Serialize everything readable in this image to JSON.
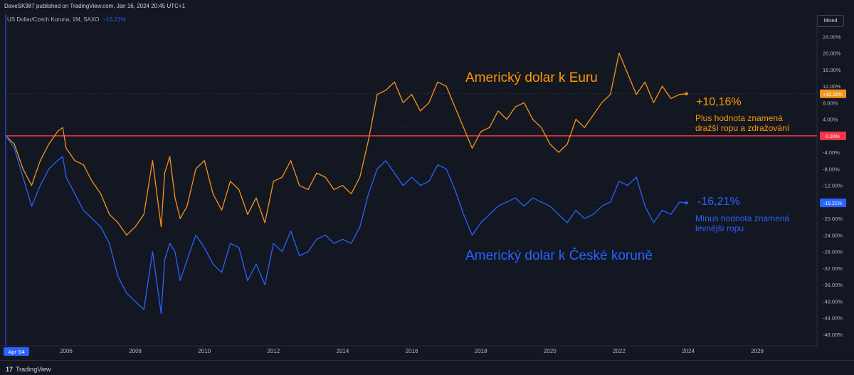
{
  "header": {
    "published": "DaveSK987 published on TradingView.com, Jan 16, 2024 20:45 UTC+1",
    "symbol": "US Dollar/Czech Koruna, 1M, SAXO",
    "symbol_change": "−16.21%",
    "scale_mode": "Mixed"
  },
  "footer": {
    "logo_text": "TradingView",
    "logo_mark": "17"
  },
  "annotations": {
    "euro_title": "Americký dolar k Euru",
    "euro_value": "+10,16%",
    "euro_note_1": "Plus hodnota znamená",
    "euro_note_2": "dražší ropu a zdražování",
    "czk_title": "Americký dolar k České koruně",
    "czk_value": "-16,21%",
    "czk_note_1": "Mínus hodnota znamená",
    "czk_note_2": "levnější ropu"
  },
  "colors": {
    "background": "#131722",
    "euro_series": "#f7931a",
    "czk_series": "#2962ff",
    "zero_line": "#f23645",
    "czk_label_text": "#2962ff",
    "euro_label_text": "#ff9800"
  },
  "chart_data": {
    "type": "line",
    "y_unit": "%",
    "ylim": [
      -50,
      26
    ],
    "xlim": [
      2004.25,
      2027.0
    ],
    "y_ticks": [
      "24.00%",
      "20.00%",
      "16.00%",
      "12.00%",
      "8.00%",
      "4.00%",
      "0.00%",
      "-4.00%",
      "-8.00%",
      "-12.00%",
      "-16.00%",
      "-20.00%",
      "-24.00%",
      "-28.00%",
      "-32.00%",
      "-36.00%",
      "-40.00%",
      "-44.00%",
      "-48.00%"
    ],
    "y_tick_values": [
      24,
      20,
      16,
      12,
      8,
      4,
      0,
      -4,
      -8,
      -12,
      -16,
      -20,
      -24,
      -28,
      -32,
      -36,
      -40,
      -44,
      -48
    ],
    "x_ticks": [
      "2006",
      "2008",
      "2010",
      "2012",
      "2014",
      "2016",
      "2018",
      "2020",
      "2022",
      "2024",
      "2026"
    ],
    "x_tick_values": [
      2006,
      2008,
      2010,
      2012,
      2014,
      2016,
      2018,
      2020,
      2022,
      2024,
      2026
    ],
    "start_label": "Apr '04",
    "grid": false,
    "zero_line": 0,
    "series": [
      {
        "name": "Americký dolar k Euru",
        "last_label": "+10.16%",
        "last_value": 10.16,
        "x": [
          2004.25,
          2004.5,
          2004.75,
          2005.0,
          2005.25,
          2005.5,
          2005.75,
          2005.9,
          2006.0,
          2006.25,
          2006.5,
          2006.75,
          2007.0,
          2007.25,
          2007.5,
          2007.75,
          2008.0,
          2008.25,
          2008.5,
          2008.75,
          2008.85,
          2009.0,
          2009.15,
          2009.3,
          2009.5,
          2009.75,
          2010.0,
          2010.25,
          2010.5,
          2010.75,
          2011.0,
          2011.25,
          2011.5,
          2011.75,
          2012.0,
          2012.25,
          2012.5,
          2012.75,
          2013.0,
          2013.25,
          2013.5,
          2013.75,
          2014.0,
          2014.25,
          2014.5,
          2014.75,
          2015.0,
          2015.25,
          2015.5,
          2015.75,
          2016.0,
          2016.25,
          2016.5,
          2016.75,
          2017.0,
          2017.25,
          2017.5,
          2017.75,
          2018.0,
          2018.25,
          2018.5,
          2018.75,
          2019.0,
          2019.25,
          2019.5,
          2019.75,
          2020.0,
          2020.25,
          2020.5,
          2020.75,
          2021.0,
          2021.25,
          2021.5,
          2021.75,
          2022.0,
          2022.25,
          2022.5,
          2022.75,
          2023.0,
          2023.25,
          2023.5,
          2023.75,
          2023.95
        ],
        "values": [
          0,
          -2,
          -8,
          -12,
          -6,
          -2,
          1,
          2,
          -3,
          -6,
          -7,
          -11,
          -14,
          -19,
          -21,
          -24,
          -22,
          -19,
          -6,
          -22,
          -9,
          -5,
          -15,
          -20,
          -17,
          -8,
          -6,
          -14,
          -18,
          -11,
          -13,
          -19,
          -15,
          -21,
          -11,
          -10,
          -6,
          -12,
          -13,
          -9,
          -10,
          -13,
          -12,
          -14,
          -10,
          -1,
          10,
          11,
          13,
          8,
          10,
          6,
          8,
          13,
          12,
          7,
          2,
          -3,
          1,
          2,
          6,
          4,
          7,
          8,
          4,
          2,
          -2,
          -4,
          -2,
          4,
          2,
          5,
          8,
          10,
          20,
          15,
          10,
          13,
          8,
          12,
          9,
          10,
          10.16
        ]
      },
      {
        "name": "Americký dolar k České koruně",
        "last_label": "-16.21%",
        "last_value": -16.21,
        "x": [
          2004.25,
          2004.5,
          2004.75,
          2005.0,
          2005.25,
          2005.5,
          2005.75,
          2005.9,
          2006.0,
          2006.25,
          2006.5,
          2006.75,
          2007.0,
          2007.25,
          2007.5,
          2007.75,
          2008.0,
          2008.25,
          2008.5,
          2008.75,
          2008.85,
          2009.0,
          2009.15,
          2009.3,
          2009.5,
          2009.75,
          2010.0,
          2010.25,
          2010.5,
          2010.75,
          2011.0,
          2011.25,
          2011.5,
          2011.75,
          2012.0,
          2012.25,
          2012.5,
          2012.75,
          2013.0,
          2013.25,
          2013.5,
          2013.75,
          2014.0,
          2014.25,
          2014.5,
          2014.75,
          2015.0,
          2015.25,
          2015.5,
          2015.75,
          2016.0,
          2016.25,
          2016.5,
          2016.75,
          2017.0,
          2017.25,
          2017.5,
          2017.75,
          2018.0,
          2018.25,
          2018.5,
          2018.75,
          2019.0,
          2019.25,
          2019.5,
          2019.75,
          2020.0,
          2020.25,
          2020.5,
          2020.75,
          2021.0,
          2021.25,
          2021.5,
          2021.75,
          2022.0,
          2022.25,
          2022.5,
          2022.75,
          2023.0,
          2023.25,
          2023.5,
          2023.75,
          2023.95
        ],
        "values": [
          0,
          -3,
          -10,
          -17,
          -12,
          -8,
          -6,
          -5,
          -10,
          -14,
          -18,
          -20,
          -22,
          -26,
          -34,
          -38,
          -40,
          -42,
          -28,
          -43,
          -30,
          -26,
          -28,
          -35,
          -30,
          -24,
          -27,
          -31,
          -33,
          -26,
          -27,
          -35,
          -31,
          -36,
          -26,
          -28,
          -23,
          -29,
          -28,
          -25,
          -24,
          -26,
          -25,
          -26,
          -22,
          -14,
          -8,
          -6,
          -9,
          -12,
          -10,
          -12,
          -11,
          -7,
          -8,
          -13,
          -19,
          -24,
          -21,
          -19,
          -17,
          -16,
          -15,
          -17,
          -15,
          -16,
          -17,
          -19,
          -21,
          -18,
          -20,
          -19,
          -17,
          -16,
          -11,
          -12,
          -10,
          -17,
          -21,
          -18,
          -19,
          -16,
          -16.21
        ]
      }
    ]
  }
}
